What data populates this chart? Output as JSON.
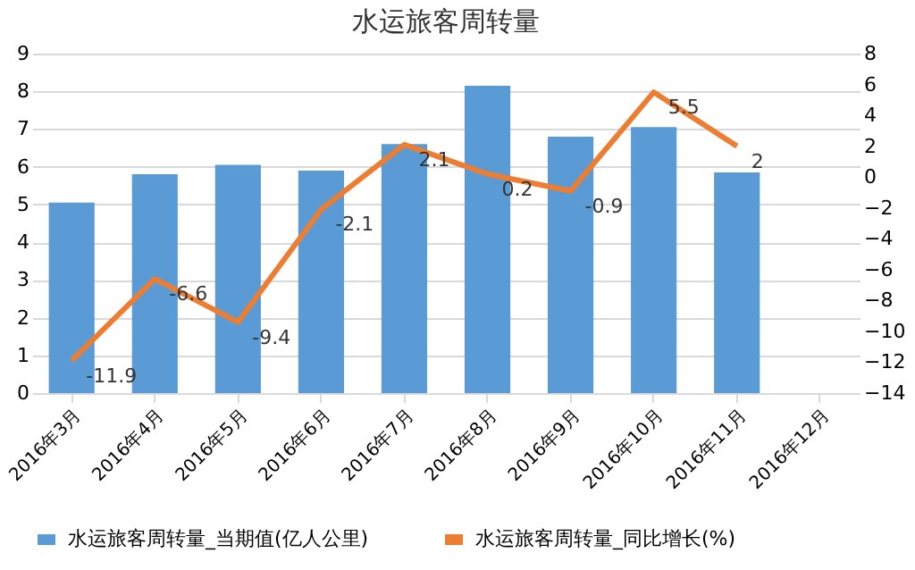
{
  "chart_data": {
    "type": "bar",
    "title": "水运旅客周转量",
    "categories": [
      "2016年3月",
      "2016年4月",
      "2016年5月",
      "2016年6月",
      "2016年7月",
      "2016年8月",
      "2016年9月",
      "2016年10月",
      "2016年11月",
      "2016年12月"
    ],
    "series": [
      {
        "name": "水运旅客周转量_当期值(亿人公里)",
        "color": "#5b9bd5",
        "values": [
          5.05,
          5.8,
          6.05,
          5.9,
          6.6,
          8.15,
          6.8,
          7.05,
          5.85,
          null
        ]
      },
      {
        "name": "水运旅客周转量_同比增长(%)",
        "color": "#ed7d31",
        "type": "line",
        "axis": "y2",
        "values": [
          -11.9,
          -6.6,
          -9.4,
          -2.1,
          2.1,
          0.2,
          -0.9,
          5.5,
          2,
          null
        ],
        "value_labels": [
          "-11.9",
          "-6.6",
          "-9.4",
          "-2.1",
          "2.1",
          "0.2",
          "-0.9",
          "5.5",
          "2",
          null
        ]
      }
    ],
    "ylim": [
      0,
      9
    ],
    "yticks": [
      0,
      1,
      2,
      3,
      4,
      5,
      6,
      7,
      8,
      9
    ],
    "y2lim": [
      -14,
      8
    ],
    "y2ticks": [
      -14,
      -12,
      -10,
      -8,
      -6,
      -4,
      -2,
      0,
      2,
      4,
      6,
      8
    ],
    "grid": "y",
    "legend": "bottom",
    "marker": "none",
    "line_style": "solid"
  }
}
